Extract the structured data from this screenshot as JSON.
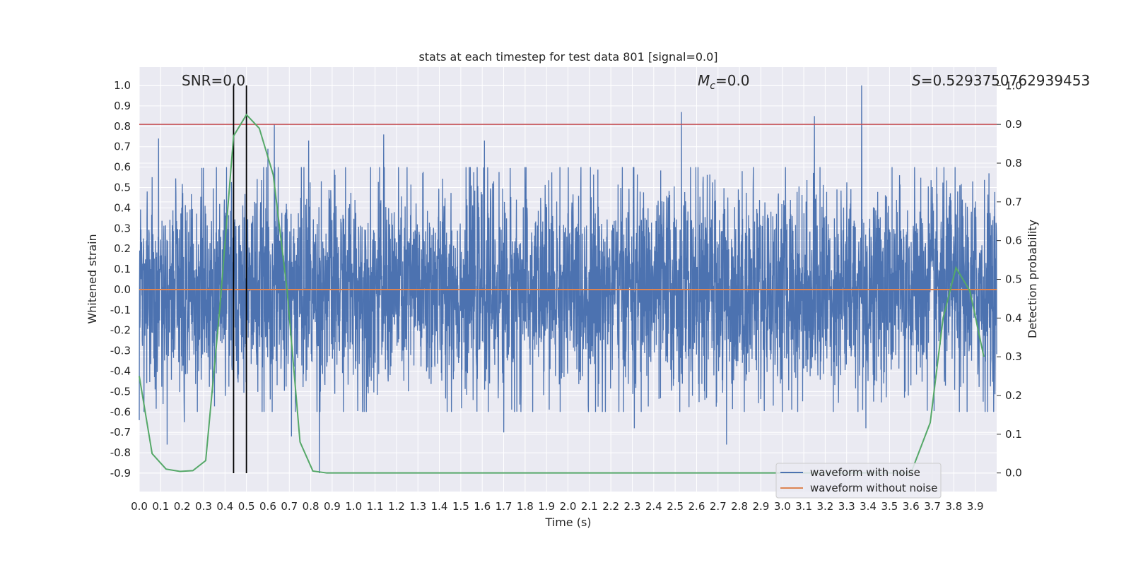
{
  "chart_data": {
    "type": "line",
    "title": "stats at each timestep for test data 801 [signal=0.0]",
    "xlabel": "Time (s)",
    "ylabel_left": "Whitened strain",
    "ylabel_right": "Detection probability",
    "xlim": [
      0.0,
      4.0
    ],
    "ylim_left": [
      -0.99,
      1.09
    ],
    "ylim_right": [
      -0.048,
      1.048
    ],
    "x_ticks": [
      "0.0",
      "0.1",
      "0.2",
      "0.3",
      "0.4",
      "0.5",
      "0.6",
      "0.7",
      "0.8",
      "0.9",
      "1.0",
      "1.1",
      "1.2",
      "1.3",
      "1.4",
      "1.5",
      "1.6",
      "1.7",
      "1.8",
      "1.9",
      "2.0",
      "2.1",
      "2.2",
      "2.3",
      "2.4",
      "2.5",
      "2.6",
      "2.7",
      "2.8",
      "2.9",
      "3.0",
      "3.1",
      "3.2",
      "3.3",
      "3.4",
      "3.5",
      "3.6",
      "3.7",
      "3.8",
      "3.9"
    ],
    "y_ticks_left": [
      "-0.9",
      "-0.8",
      "-0.7",
      "-0.6",
      "-0.5",
      "-0.4",
      "-0.3",
      "-0.2",
      "-0.1",
      "0.0",
      "0.1",
      "0.2",
      "0.3",
      "0.4",
      "0.5",
      "0.6",
      "0.7",
      "0.8",
      "0.9",
      "1.0"
    ],
    "y_ticks_right": [
      "0.0",
      "0.1",
      "0.2",
      "0.3",
      "0.4",
      "0.5",
      "0.6",
      "0.7",
      "0.8",
      "0.9",
      "1.0"
    ],
    "grid": true,
    "legend_position": "bottom-right",
    "annotations": {
      "snr": "SNR=0.0",
      "mc_symbol": "M",
      "mc_sub": "c",
      "mc_value": "=0.0",
      "s_symbol": "S",
      "s_value": "=0.5293750762939453"
    },
    "series": [
      {
        "name": "waveform with noise",
        "axis": "left",
        "color": "#4c72b0",
        "style": "dense-noise",
        "typical_range": [
          -0.33,
          0.33
        ],
        "peaks": [
          {
            "x": 0.0,
            "y": -0.64
          },
          {
            "x": 0.09,
            "y": 0.74
          },
          {
            "x": 0.13,
            "y": -0.76
          },
          {
            "x": 0.21,
            "y": 0.74
          },
          {
            "x": 0.21,
            "y": -0.65
          },
          {
            "x": 0.44,
            "y": -0.62
          },
          {
            "x": 0.5,
            "y": 0.69
          },
          {
            "x": 0.6,
            "y": 0.69
          },
          {
            "x": 0.63,
            "y": 0.81
          },
          {
            "x": 0.71,
            "y": -0.72
          },
          {
            "x": 0.79,
            "y": 0.73
          },
          {
            "x": 0.84,
            "y": -0.9
          },
          {
            "x": 1.14,
            "y": 0.76
          },
          {
            "x": 1.61,
            "y": 0.73
          },
          {
            "x": 1.7,
            "y": -0.7
          },
          {
            "x": 2.31,
            "y": -0.68
          },
          {
            "x": 2.53,
            "y": 0.87
          },
          {
            "x": 2.74,
            "y": -0.76
          },
          {
            "x": 3.15,
            "y": 0.85
          },
          {
            "x": 3.37,
            "y": 1.0
          },
          {
            "x": 3.39,
            "y": -0.68
          }
        ]
      },
      {
        "name": "waveform without noise",
        "axis": "left",
        "color": "#dd8452",
        "x": [
          0.0,
          4.0
        ],
        "y": [
          0.0,
          0.0
        ]
      },
      {
        "axis": "right",
        "color": "#55a868",
        "x": [
          0.0,
          0.06,
          0.125,
          0.19,
          0.25,
          0.31,
          0.375,
          0.44,
          0.5,
          0.56,
          0.625,
          0.69,
          0.75,
          0.81,
          0.875,
          3.6,
          3.69,
          3.75,
          3.81,
          3.875,
          3.94
        ],
        "y": [
          0.25,
          0.05,
          0.01,
          0.004,
          0.006,
          0.032,
          0.42,
          0.87,
          0.925,
          0.89,
          0.77,
          0.47,
          0.08,
          0.005,
          0.0,
          0.0,
          0.13,
          0.4,
          0.53,
          0.47,
          0.3
        ]
      }
    ],
    "hlines": [
      {
        "axis": "right",
        "y": 0.9,
        "color": "#c44e52"
      }
    ],
    "vlines": [
      {
        "x": 0.44,
        "y": [
          -0.9,
          1.0
        ],
        "color": "#000000"
      },
      {
        "x": 0.5,
        "y": [
          -0.9,
          1.0
        ],
        "color": "#000000"
      }
    ]
  }
}
